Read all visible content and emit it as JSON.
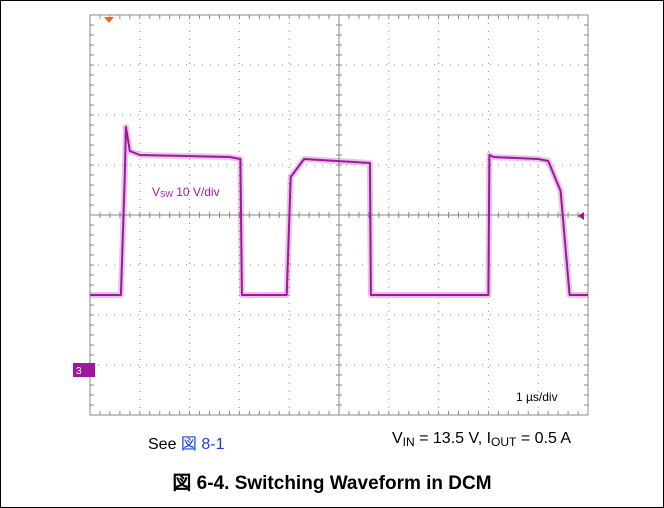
{
  "chart_data": {
    "type": "line",
    "title": "図 6-4. Switching Waveform in DCM",
    "xlabel": "",
    "ylabel": "",
    "grid": true,
    "x_scale_text": "1 µs/div",
    "channel_label": {
      "main": "V",
      "sub": "SW",
      "rest": " 10 V/div"
    },
    "channel_marker": "3",
    "xlim": [
      0,
      10
    ],
    "ylim": [
      -60,
      40
    ],
    "series": [
      {
        "color": "#a0179f",
        "x": [
          0,
          0.62,
          0.7,
          0.72,
          0.8,
          1.0,
          2.8,
          3.02,
          3.05,
          3.3,
          3.5,
          3.72,
          3.95,
          4.03,
          4.3,
          5.62,
          5.64,
          5.72,
          5.8,
          6.0,
          7.8,
          8.0,
          8.02,
          8.1,
          9.0,
          9.2,
          9.45,
          9.63,
          9.72,
          9.8,
          10.0
        ],
        "y": [
          -30,
          -30,
          0.5,
          12,
          6,
          5,
          4.5,
          4,
          -30,
          -30,
          -30,
          -30,
          -30,
          -0.5,
          4,
          3,
          -30,
          -30,
          -30,
          -30,
          -30,
          -30,
          5,
          4.5,
          4,
          3.5,
          -4,
          -30,
          -30,
          -30,
          -30
        ]
      }
    ],
    "ringing_region": {
      "x": [
        9.6,
        10.0
      ],
      "label": ""
    }
  },
  "caption": {
    "see_text": "See ",
    "see_link": "図 8-1",
    "cond_v": "V",
    "cond_v_sub": "IN",
    "cond_mid": " = 13.5 V, I",
    "cond_i_sub": "OUT",
    "cond_end": " = 0.5 A"
  },
  "colors": {
    "trace": "#a0179f",
    "grid": "#8a8a8a",
    "marker": "#ee6a1a"
  }
}
